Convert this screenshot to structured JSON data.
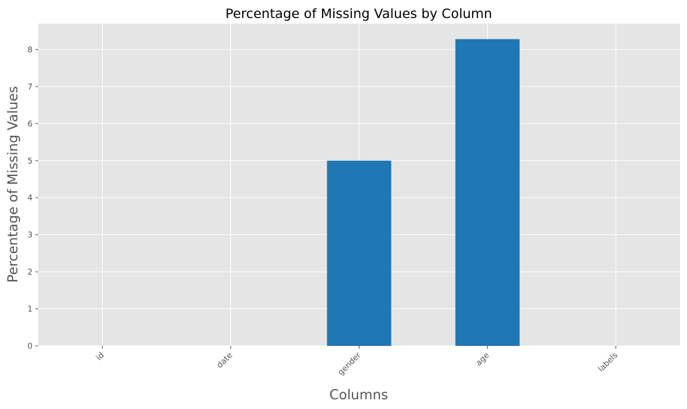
{
  "chart_data": {
    "type": "bar",
    "title": "Percentage of Missing Values by Column",
    "xlabel": "Columns",
    "ylabel": "Percentage of Missing Values",
    "categories": [
      "id",
      "date",
      "gender",
      "age",
      "labels"
    ],
    "values": [
      0,
      0,
      5.0,
      8.28,
      0
    ],
    "yticks": [
      0,
      1,
      2,
      3,
      4,
      5,
      6,
      7,
      8
    ],
    "ylim": [
      0,
      8.7
    ],
    "grid": true,
    "legend": "none",
    "bar_color": "#1f77b4",
    "background_color": "#e5e5e5",
    "grid_color": "#ffffff"
  }
}
